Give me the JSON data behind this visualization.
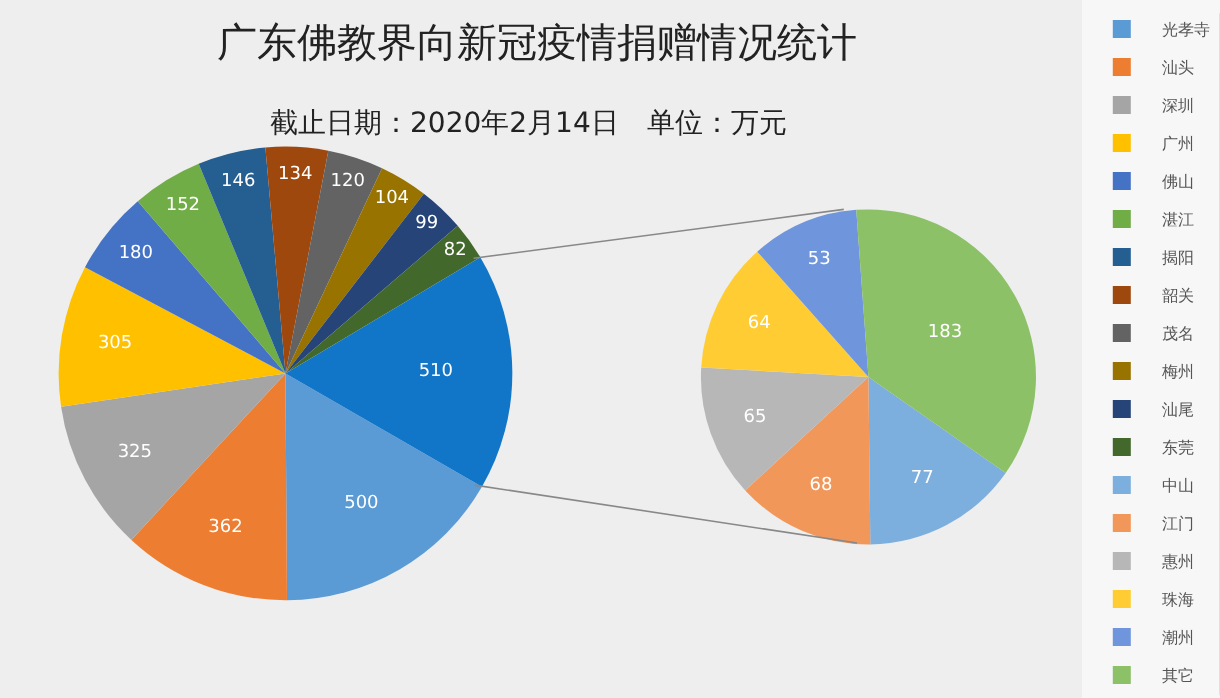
{
  "chart_data": [
    {
      "type": "pie",
      "title": "广东佛教界向新冠疫情捐赠情况统计",
      "subtitle": "截止日期：2020年2月14日　单位：万元",
      "legend": "right",
      "data_labels": true,
      "categories": [
        "光孝寺",
        "汕头",
        "深圳",
        "广州",
        "佛山",
        "湛江",
        "揭阳",
        "韶关",
        "茂名",
        "梅州",
        "汕尾",
        "东莞",
        null
      ],
      "values": [
        500,
        362,
        325,
        305,
        180,
        152,
        146,
        134,
        120,
        104,
        99,
        82,
        510
      ],
      "colors": [
        "#5b9bd5",
        "#ed7d31",
        "#a5a5a5",
        "#ffc000",
        "#4472c4",
        "#70ad47",
        "#255e91",
        "#9e480e",
        "#636363",
        "#997300",
        "#264478",
        "#43682b",
        "#1276c8"
      ]
    },
    {
      "type": "pie",
      "legend": "right",
      "data_labels": true,
      "categories": [
        "中山",
        "江门",
        "惠州",
        "珠海",
        "潮州",
        "其它"
      ],
      "values": [
        77,
        68,
        65,
        64,
        53,
        183
      ],
      "colors": [
        "#7cafdd",
        "#f1975a",
        "#b7b7b7",
        "#ffcd33",
        "#6f95dc",
        "#8cc168"
      ]
    }
  ]
}
